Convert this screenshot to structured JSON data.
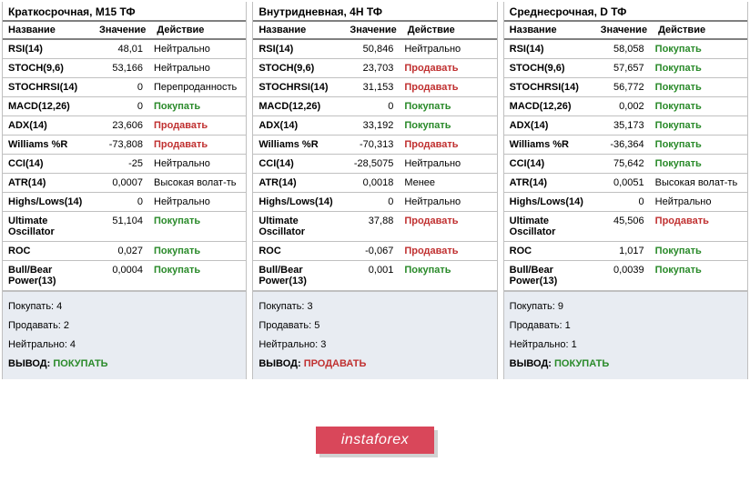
{
  "colors": {
    "panel_border": "#c0c0c0",
    "header_rule": "#808080",
    "summary_bg": "#e8ecf2",
    "buy": "#2a8a2a",
    "sell": "#c03030",
    "brand_bg": "#d9475a",
    "brand_fg": "#ffffff"
  },
  "columns": {
    "name": "Название",
    "value": "Значение",
    "action": "Действие"
  },
  "panels": [
    {
      "title": "Краткосрочная, M15 ТФ",
      "rows": [
        {
          "name": "RSI(14)",
          "value": "48,01",
          "action": "Нейтрально",
          "kind": "neutral"
        },
        {
          "name": "STOCH(9,6)",
          "value": "53,166",
          "action": "Нейтрально",
          "kind": "neutral"
        },
        {
          "name": "STOCHRSI(14)",
          "value": "0",
          "action": "Перепроданность",
          "kind": "neutral"
        },
        {
          "name": "MACD(12,26)",
          "value": "0",
          "action": "Покупать",
          "kind": "buy"
        },
        {
          "name": "ADX(14)",
          "value": "23,606",
          "action": "Продавать",
          "kind": "sell"
        },
        {
          "name": "Williams %R",
          "value": "-73,808",
          "action": "Продавать",
          "kind": "sell"
        },
        {
          "name": "CCI(14)",
          "value": "-25",
          "action": "Нейтрально",
          "kind": "neutral"
        },
        {
          "name": "ATR(14)",
          "value": "0,0007",
          "action": "Высокая волат-ть",
          "kind": "neutral"
        },
        {
          "name": "Highs/Lows(14)",
          "value": "0",
          "action": "Нейтрально",
          "kind": "neutral"
        },
        {
          "name": "Ultimate Oscillator",
          "value": "51,104",
          "action": "Покупать",
          "kind": "buy"
        },
        {
          "name": "ROC",
          "value": "0,027",
          "action": "Покупать",
          "kind": "buy"
        },
        {
          "name": "Bull/Bear Power(13)",
          "value": "0,0004",
          "action": "Покупать",
          "kind": "buy"
        }
      ],
      "summary": {
        "buy_label": "Покупать: 4",
        "sell_label": "Продавать: 2",
        "neutral_label": "Нейтрально: 4",
        "verdict_prefix": "ВЫВОД:",
        "verdict_text": "ПОКУПАТЬ",
        "verdict_kind": "buy"
      }
    },
    {
      "title": "Внутридневная, 4H ТФ",
      "rows": [
        {
          "name": "RSI(14)",
          "value": "50,846",
          "action": "Нейтрально",
          "kind": "neutral"
        },
        {
          "name": "STOCH(9,6)",
          "value": "23,703",
          "action": "Продавать",
          "kind": "sell"
        },
        {
          "name": "STOCHRSI(14)",
          "value": "31,153",
          "action": "Продавать",
          "kind": "sell"
        },
        {
          "name": "MACD(12,26)",
          "value": "0",
          "action": "Покупать",
          "kind": "buy"
        },
        {
          "name": "ADX(14)",
          "value": "33,192",
          "action": "Покупать",
          "kind": "buy"
        },
        {
          "name": "Williams %R",
          "value": "-70,313",
          "action": "Продавать",
          "kind": "sell"
        },
        {
          "name": "CCI(14)",
          "value": "-28,5075",
          "action": "Нейтрально",
          "kind": "neutral"
        },
        {
          "name": "ATR(14)",
          "value": "0,0018",
          "action": "Менее",
          "kind": "neutral"
        },
        {
          "name": "Highs/Lows(14)",
          "value": "0",
          "action": "Нейтрально",
          "kind": "neutral"
        },
        {
          "name": "Ultimate Oscillator",
          "value": "37,88",
          "action": "Продавать",
          "kind": "sell"
        },
        {
          "name": "ROC",
          "value": "-0,067",
          "action": "Продавать",
          "kind": "sell"
        },
        {
          "name": "Bull/Bear Power(13)",
          "value": "0,001",
          "action": "Покупать",
          "kind": "buy"
        }
      ],
      "summary": {
        "buy_label": "Покупать: 3",
        "sell_label": "Продавать: 5",
        "neutral_label": "Нейтрально: 3",
        "verdict_prefix": "ВЫВОД:",
        "verdict_text": "ПРОДАВАТЬ",
        "verdict_kind": "sell"
      }
    },
    {
      "title": "Среднесрочная, D ТФ",
      "rows": [
        {
          "name": "RSI(14)",
          "value": "58,058",
          "action": "Покупать",
          "kind": "buy"
        },
        {
          "name": "STOCH(9,6)",
          "value": "57,657",
          "action": "Покупать",
          "kind": "buy"
        },
        {
          "name": "STOCHRSI(14)",
          "value": "56,772",
          "action": "Покупать",
          "kind": "buy"
        },
        {
          "name": "MACD(12,26)",
          "value": "0,002",
          "action": "Покупать",
          "kind": "buy"
        },
        {
          "name": "ADX(14)",
          "value": "35,173",
          "action": "Покупать",
          "kind": "buy"
        },
        {
          "name": "Williams %R",
          "value": "-36,364",
          "action": "Покупать",
          "kind": "buy"
        },
        {
          "name": "CCI(14)",
          "value": "75,642",
          "action": "Покупать",
          "kind": "buy"
        },
        {
          "name": "ATR(14)",
          "value": "0,0051",
          "action": "Высокая волат-ть",
          "kind": "neutral"
        },
        {
          "name": "Highs/Lows(14)",
          "value": "0",
          "action": "Нейтрально",
          "kind": "neutral"
        },
        {
          "name": "Ultimate Oscillator",
          "value": "45,506",
          "action": "Продавать",
          "kind": "sell"
        },
        {
          "name": "ROC",
          "value": "1,017",
          "action": "Покупать",
          "kind": "buy"
        },
        {
          "name": "Bull/Bear Power(13)",
          "value": "0,0039",
          "action": "Покупать",
          "kind": "buy"
        }
      ],
      "summary": {
        "buy_label": "Покупать: 9",
        "sell_label": "Продавать: 1",
        "neutral_label": "Нейтрально: 1",
        "verdict_prefix": "ВЫВОД:",
        "verdict_text": "ПОКУПАТЬ",
        "verdict_kind": "buy"
      }
    }
  ],
  "brand": "instaforex"
}
